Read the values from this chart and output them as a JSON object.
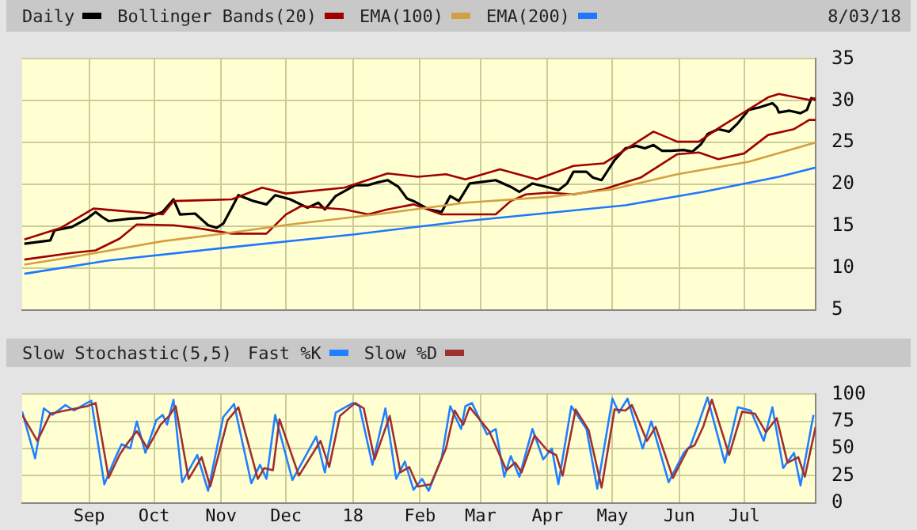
{
  "chart_data": [
    {
      "type": "line",
      "legend": "top",
      "grid": true,
      "tick_labels": "y",
      "annotations": [
        "8/03/18"
      ],
      "xlim": [
        "2017-08-01",
        "2018-08-03"
      ],
      "xticks": [
        {
          "value": "2017-09-01",
          "label": null
        },
        {
          "value": "2017-10-01",
          "label": null
        },
        {
          "value": "2017-11-01",
          "label": null
        },
        {
          "value": "2017-12-01",
          "label": null
        },
        {
          "value": "2018-01-01",
          "label": null
        },
        {
          "value": "2018-02-01",
          "label": null
        },
        {
          "value": "2018-03-01",
          "label": null
        },
        {
          "value": "2018-04-01",
          "label": null
        },
        {
          "value": "2018-05-01",
          "label": null
        },
        {
          "value": "2018-06-01",
          "label": null
        },
        {
          "value": "2018-07-01",
          "label": null
        }
      ],
      "ylim": [
        5,
        35
      ],
      "yticks": [
        5,
        10,
        15,
        20,
        25,
        30,
        35
      ],
      "series": [
        {
          "name": "Daily",
          "color": "#000000",
          "x": [
            "2017-08-02",
            "2017-08-14",
            "2017-08-16",
            "2017-08-24",
            "2017-08-31",
            "2017-09-04",
            "2017-09-07",
            "2017-09-10",
            "2017-09-20",
            "2017-09-27",
            "2017-10-05",
            "2017-10-10",
            "2017-10-13",
            "2017-10-20",
            "2017-10-26",
            "2017-10-30",
            "2017-11-02",
            "2017-11-06",
            "2017-11-09",
            "2017-11-16",
            "2017-11-22",
            "2017-11-26",
            "2017-12-03",
            "2017-12-11",
            "2017-12-16",
            "2017-12-19",
            "2017-12-24",
            "2018-01-02",
            "2018-01-08",
            "2018-01-12",
            "2018-01-17",
            "2018-01-22",
            "2018-01-26",
            "2018-01-29",
            "2018-02-05",
            "2018-02-11",
            "2018-02-15",
            "2018-02-19",
            "2018-02-24",
            "2018-03-02",
            "2018-03-08",
            "2018-03-15",
            "2018-03-19",
            "2018-03-25",
            "2018-04-02",
            "2018-04-06",
            "2018-04-10",
            "2018-04-13",
            "2018-04-19",
            "2018-04-22",
            "2018-04-26",
            "2018-04-28",
            "2018-05-02",
            "2018-05-07",
            "2018-05-12",
            "2018-05-16",
            "2018-05-20",
            "2018-05-24",
            "2018-05-28",
            "2018-06-03",
            "2018-06-07",
            "2018-06-11",
            "2018-06-14",
            "2018-06-19",
            "2018-06-24",
            "2018-06-28",
            "2018-07-03",
            "2018-07-08",
            "2018-07-14",
            "2018-07-16",
            "2018-07-17",
            "2018-07-22",
            "2018-07-27",
            "2018-07-30",
            "2018-08-01",
            "2018-08-03"
          ],
          "values": [
            12.9,
            13.3,
            14.5,
            14.9,
            15.9,
            16.7,
            16.1,
            15.6,
            15.9,
            16.0,
            16.7,
            18.2,
            16.4,
            16.5,
            15.1,
            14.8,
            15.3,
            17.2,
            18.7,
            18.0,
            17.6,
            18.7,
            18.2,
            17.2,
            17.8,
            17.0,
            18.6,
            19.9,
            19.9,
            20.2,
            20.5,
            19.7,
            18.3,
            18.0,
            17.0,
            16.7,
            18.6,
            18.0,
            20.1,
            20.3,
            20.5,
            19.7,
            19.1,
            20.1,
            19.6,
            19.3,
            20.1,
            21.5,
            21.5,
            20.8,
            20.5,
            21.3,
            22.9,
            24.3,
            24.6,
            24.3,
            24.7,
            24.0,
            24.0,
            24.1,
            23.9,
            24.8,
            26.0,
            26.6,
            26.3,
            27.3,
            28.9,
            29.2,
            29.7,
            29.2,
            28.6,
            28.8,
            28.5,
            28.9,
            30.3,
            30.1
          ]
        },
        {
          "name": "Bollinger Bands(20)",
          "color": "#a00000",
          "x": [
            "2017-08-02",
            "2017-08-19",
            "2017-09-03",
            "2017-10-05",
            "2017-10-10",
            "2017-11-06",
            "2017-11-20",
            "2017-12-01",
            "2017-12-28",
            "2018-01-17",
            "2018-01-31",
            "2018-02-13",
            "2018-02-22",
            "2018-03-10",
            "2018-03-27",
            "2018-04-13",
            "2018-04-27",
            "2018-05-20",
            "2018-05-31",
            "2018-06-10",
            "2018-06-19",
            "2018-07-12",
            "2018-07-17",
            "2018-07-31",
            "2018-08-03"
          ],
          "values": [
            13.4,
            14.8,
            17.1,
            16.4,
            18.0,
            18.2,
            19.6,
            18.9,
            19.6,
            21.3,
            20.9,
            21.2,
            20.6,
            21.8,
            20.6,
            22.2,
            22.5,
            26.3,
            25.1,
            25.1,
            26.7,
            30.4,
            30.8,
            30.1,
            30.3
          ]
        },
        {
          "color": "#a00000",
          "x": [
            "2017-08-02",
            "2017-08-24",
            "2017-09-04",
            "2017-09-15",
            "2017-09-23",
            "2017-10-10",
            "2017-10-20",
            "2017-11-06",
            "2017-11-22",
            "2017-12-01",
            "2017-12-08",
            "2017-12-28",
            "2018-01-08",
            "2018-01-17",
            "2018-01-29",
            "2018-02-11",
            "2018-02-22",
            "2018-03-08",
            "2018-03-15",
            "2018-03-22",
            "2018-04-02",
            "2018-04-13",
            "2018-04-27",
            "2018-05-14",
            "2018-05-31",
            "2018-06-10",
            "2018-06-19",
            "2018-07-01",
            "2018-07-12",
            "2018-07-24",
            "2018-07-31",
            "2018-08-03"
          ],
          "values": [
            11.0,
            11.8,
            12.1,
            13.5,
            15.2,
            15.1,
            14.8,
            14.1,
            14.1,
            16.4,
            17.4,
            17.0,
            16.4,
            17.0,
            17.6,
            16.4,
            16.4,
            16.4,
            18.0,
            18.8,
            19.0,
            18.8,
            19.4,
            20.8,
            23.6,
            23.8,
            23.0,
            23.7,
            25.9,
            26.6,
            27.7,
            27.7
          ]
        },
        {
          "name": "EMA(100)",
          "color": "#d4a040",
          "x": [
            "2017-08-02",
            "2017-08-24",
            "2017-10-05",
            "2017-10-30",
            "2017-12-03",
            "2018-01-12",
            "2018-02-22",
            "2018-04-02",
            "2018-05-01",
            "2018-05-31",
            "2018-07-03",
            "2018-08-03"
          ],
          "values": [
            10.4,
            11.3,
            13.2,
            14.0,
            15.2,
            16.4,
            17.8,
            18.5,
            19.4,
            21.2,
            22.7,
            25.0
          ]
        },
        {
          "name": "EMA(200)",
          "color": "#1e78ff",
          "x": [
            "2017-08-02",
            "2017-09-10",
            "2017-10-30",
            "2018-01-01",
            "2018-02-22",
            "2018-04-02",
            "2018-05-07",
            "2018-06-12",
            "2018-07-17",
            "2018-08-03"
          ],
          "values": [
            9.3,
            10.9,
            12.3,
            14.0,
            15.6,
            16.6,
            17.5,
            19.1,
            20.9,
            22.0
          ]
        }
      ]
    },
    {
      "type": "line",
      "title": "Slow Stochastic(5,5)",
      "legend": "top",
      "grid": true,
      "xlim": [
        "2017-08-01",
        "2018-08-03"
      ],
      "xticks": [
        {
          "value": "2017-09-01",
          "label": "Sep"
        },
        {
          "value": "2017-10-01",
          "label": "Oct"
        },
        {
          "value": "2017-11-01",
          "label": "Nov"
        },
        {
          "value": "2017-12-01",
          "label": "Dec"
        },
        {
          "value": "2018-01-01",
          "label": "18"
        },
        {
          "value": "2018-02-01",
          "label": "Feb"
        },
        {
          "value": "2018-03-01",
          "label": "Mar"
        },
        {
          "value": "2018-04-01",
          "label": "Apr"
        },
        {
          "value": "2018-05-01",
          "label": "May"
        },
        {
          "value": "2018-06-01",
          "label": "Jun"
        },
        {
          "value": "2018-07-01",
          "label": "Jul"
        }
      ],
      "ylim": [
        0,
        100
      ],
      "yticks": [
        0,
        25,
        50,
        75,
        100
      ],
      "series": [
        {
          "name": "Fast %K",
          "color": "#2080ff",
          "x": [
            "2017-08-01",
            "2017-08-07",
            "2017-08-11",
            "2017-08-15",
            "2017-08-21",
            "2017-08-25",
            "2017-08-31",
            "2017-09-02",
            "2017-09-08",
            "2017-09-13",
            "2017-09-16",
            "2017-09-20",
            "2017-09-23",
            "2017-09-27",
            "2017-10-02",
            "2017-10-05",
            "2017-10-07",
            "2017-10-10",
            "2017-10-14",
            "2017-10-21",
            "2017-10-26",
            "2017-11-02",
            "2017-11-07",
            "2017-11-15",
            "2017-11-19",
            "2017-11-22",
            "2017-11-26",
            "2017-12-04",
            "2017-12-15",
            "2017-12-19",
            "2017-12-24",
            "2018-01-01",
            "2018-01-04",
            "2018-01-10",
            "2018-01-16",
            "2018-01-21",
            "2018-01-25",
            "2018-01-29",
            "2018-02-02",
            "2018-02-05",
            "2018-02-11",
            "2018-02-15",
            "2018-02-20",
            "2018-02-22",
            "2018-02-25",
            "2018-03-04",
            "2018-03-08",
            "2018-03-12",
            "2018-03-15",
            "2018-03-19",
            "2018-03-25",
            "2018-03-30",
            "2018-04-03",
            "2018-04-06",
            "2018-04-12",
            "2018-04-19",
            "2018-04-24",
            "2018-05-01",
            "2018-05-04",
            "2018-05-08",
            "2018-05-15",
            "2018-05-19",
            "2018-05-27",
            "2018-06-03",
            "2018-06-06",
            "2018-06-10",
            "2018-06-14",
            "2018-06-22",
            "2018-06-28",
            "2018-07-04",
            "2018-07-10",
            "2018-07-14",
            "2018-07-19",
            "2018-07-24",
            "2018-07-27",
            "2018-08-02"
          ],
          "values": [
            84,
            41,
            87,
            81,
            90,
            85,
            92,
            94,
            17,
            41,
            54,
            50,
            75,
            46,
            76,
            81,
            72,
            95,
            19,
            44,
            11,
            79,
            91,
            18,
            35,
            22,
            81,
            21,
            61,
            28,
            83,
            92,
            89,
            35,
            87,
            22,
            38,
            12,
            22,
            11,
            41,
            89,
            68,
            89,
            92,
            63,
            68,
            24,
            43,
            24,
            68,
            40,
            50,
            17,
            89,
            68,
            13,
            96,
            83,
            96,
            50,
            75,
            19,
            46,
            52,
            74,
            97,
            37,
            88,
            85,
            57,
            88,
            32,
            46,
            16,
            81
          ]
        },
        {
          "name": "Slow %D",
          "color": "#a03030",
          "x": [
            "2017-08-01",
            "2017-08-08",
            "2017-08-14",
            "2017-08-21",
            "2017-08-31",
            "2017-09-04",
            "2017-09-10",
            "2017-09-15",
            "2017-09-18",
            "2017-09-23",
            "2017-09-28",
            "2017-10-04",
            "2017-10-08",
            "2017-10-11",
            "2017-10-17",
            "2017-10-23",
            "2017-10-27",
            "2017-11-04",
            "2017-11-09",
            "2017-11-18",
            "2017-11-21",
            "2017-11-25",
            "2017-11-28",
            "2017-12-07",
            "2017-12-17",
            "2017-12-21",
            "2017-12-26",
            "2018-01-02",
            "2018-01-06",
            "2018-01-11",
            "2018-01-18",
            "2018-01-23",
            "2018-01-27",
            "2018-01-31",
            "2018-02-06",
            "2018-02-13",
            "2018-02-17",
            "2018-02-21",
            "2018-02-24",
            "2018-03-05",
            "2018-03-13",
            "2018-03-17",
            "2018-03-20",
            "2018-03-26",
            "2018-04-01",
            "2018-04-05",
            "2018-04-08",
            "2018-04-14",
            "2018-04-20",
            "2018-04-26",
            "2018-05-02",
            "2018-05-07",
            "2018-05-10",
            "2018-05-17",
            "2018-05-21",
            "2018-05-29",
            "2018-06-05",
            "2018-06-08",
            "2018-06-12",
            "2018-06-16",
            "2018-06-24",
            "2018-06-30",
            "2018-07-06",
            "2018-07-11",
            "2018-07-16",
            "2018-07-21",
            "2018-07-26",
            "2018-07-29",
            "2018-08-03"
          ],
          "values": [
            81,
            57,
            82,
            85,
            89,
            92,
            23,
            44,
            53,
            66,
            50,
            72,
            80,
            89,
            22,
            42,
            15,
            76,
            88,
            22,
            32,
            30,
            77,
            25,
            57,
            33,
            80,
            92,
            87,
            40,
            80,
            28,
            33,
            15,
            17,
            50,
            85,
            72,
            88,
            66,
            30,
            37,
            28,
            62,
            48,
            44,
            25,
            86,
            67,
            14,
            86,
            85,
            90,
            57,
            70,
            23,
            50,
            53,
            70,
            95,
            44,
            84,
            82,
            65,
            78,
            37,
            42,
            24,
            70
          ]
        }
      ]
    }
  ]
}
